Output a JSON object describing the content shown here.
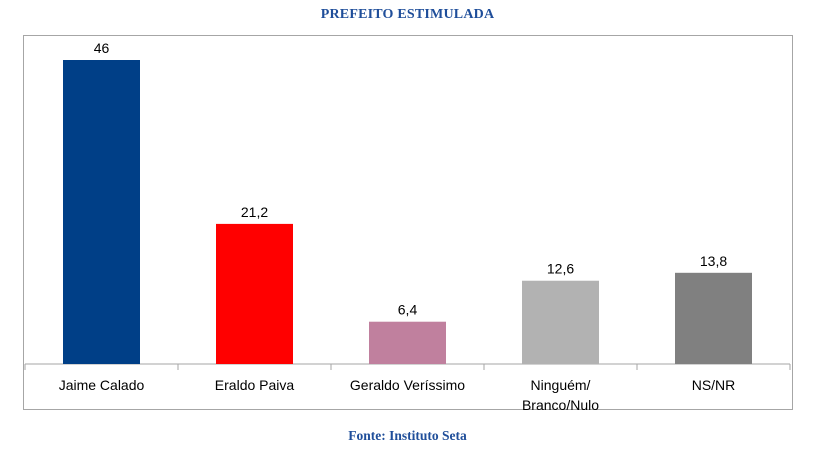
{
  "chart_data": {
    "type": "bar",
    "title": "PREFEITO ESTIMULADA",
    "source": "Fonte: Instituto Seta",
    "categories": [
      [
        "Jaime Calado"
      ],
      [
        "Eraldo Paiva"
      ],
      [
        "Geraldo Veríssimo"
      ],
      [
        "Ninguém/",
        "Branco/Nulo"
      ],
      [
        "NS/NR"
      ]
    ],
    "values": [
      46,
      21.2,
      6.4,
      12.6,
      13.8
    ],
    "value_labels": [
      "46",
      "21,2",
      "6,4",
      "12,6",
      "13,8"
    ],
    "bar_colors": [
      "#003F87",
      "#FF0000",
      "#C0809E",
      "#B2B2B2",
      "#808080"
    ],
    "ylim": [
      0,
      46
    ],
    "grid": false,
    "legend": "none",
    "xlabel": "",
    "ylabel": ""
  },
  "colors": {
    "title": "#1F4E9A",
    "source": "#1F4E9A",
    "axis": "#a6a6a6",
    "frame": "#a6a6a6"
  }
}
